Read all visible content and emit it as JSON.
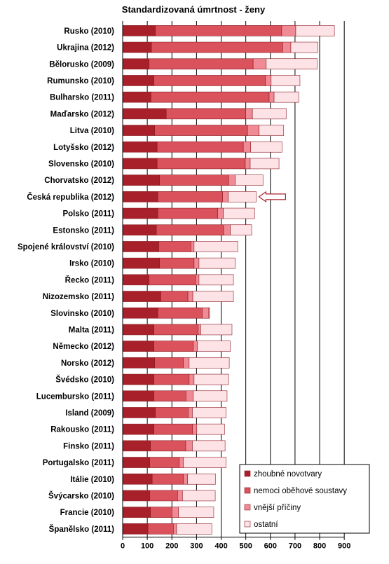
{
  "chart_data": {
    "type": "bar",
    "orientation": "horizontal",
    "stacked": true,
    "title": "Standardizovaná úmrtnost - ženy",
    "xlabel": "",
    "ylabel": "",
    "xlim": [
      0,
      900
    ],
    "xticks": [
      0,
      100,
      200,
      300,
      400,
      500,
      600,
      700,
      800,
      900
    ],
    "grid": true,
    "legend_position": "bottom-right",
    "categories": [
      "Rusko (2010)",
      "Ukrajina (2012)",
      "Bělorusko (2009)",
      "Rumunsko (2010)",
      "Bulharsko (2011)",
      "Maďarsko (2012)",
      "Litva (2010)",
      "Lotyšsko (2012)",
      "Slovensko (2010)",
      "Chorvatsko (2012)",
      "Česká republika (2012)",
      "Polsko (2011)",
      "Estonsko (2011)",
      "Spojené království (2010)",
      "Irsko (2010)",
      "Řecko (2011)",
      "Nizozemsko (2011)",
      "Slovinsko (2010)",
      "Malta (2011)",
      "Německo (2012)",
      "Norsko (2012)",
      "Švédsko (2010)",
      "Lucembursko (2011)",
      "Island (2009)",
      "Rakousko (2011)",
      "Finsko (2011)",
      "Portugalsko (2011)",
      "Itálie (2010)",
      "Švýcarsko (2010)",
      "Francie (2010)",
      "Španělsko (2011)"
    ],
    "series": [
      {
        "name": "zhoubné novotvary",
        "color": "#a8212a",
        "values": [
          133,
          117,
          107,
          127,
          115,
          177,
          130,
          140,
          140,
          150,
          143,
          143,
          137,
          147,
          150,
          107,
          155,
          143,
          127,
          127,
          130,
          127,
          127,
          133,
          127,
          113,
          110,
          120,
          110,
          113,
          103
        ]
      },
      {
        "name": "nemoci oběhové soustavy",
        "color": "#d9525c",
        "values": [
          513,
          533,
          423,
          453,
          480,
          323,
          377,
          350,
          358,
          280,
          263,
          243,
          273,
          130,
          140,
          190,
          110,
          180,
          180,
          160,
          117,
          143,
          130,
          133,
          157,
          143,
          120,
          127,
          113,
          87,
          103
        ]
      },
      {
        "name": "vnější příčiny",
        "color": "#f08a94",
        "values": [
          57,
          33,
          53,
          23,
          20,
          27,
          47,
          30,
          20,
          27,
          23,
          23,
          27,
          13,
          20,
          13,
          20,
          27,
          10,
          17,
          23,
          20,
          30,
          17,
          17,
          27,
          17,
          17,
          20,
          27,
          13
        ]
      },
      {
        "name": "ostatní",
        "color": "#fde3e6",
        "values": [
          157,
          110,
          207,
          117,
          100,
          137,
          100,
          127,
          117,
          113,
          113,
          127,
          87,
          177,
          147,
          140,
          165,
          3,
          127,
          133,
          163,
          140,
          137,
          137,
          113,
          133,
          173,
          113,
          133,
          143,
          143
        ]
      }
    ],
    "highlight": {
      "category": "Česká republika (2012)",
      "marker": "arrow"
    }
  }
}
